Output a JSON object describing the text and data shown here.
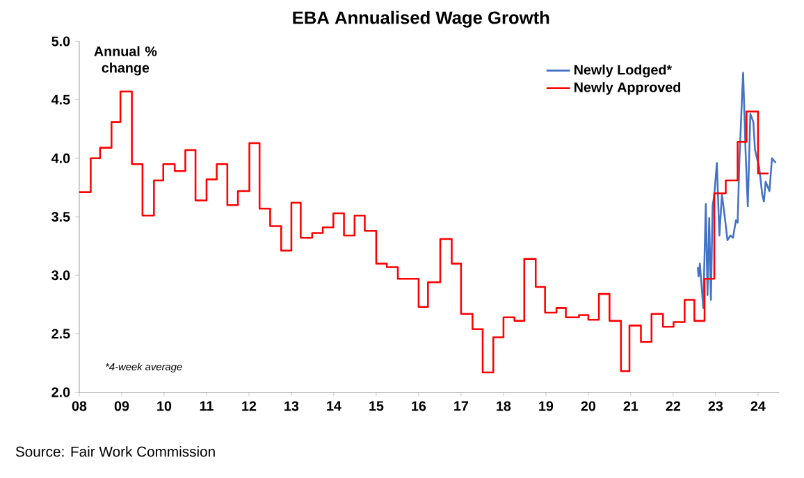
{
  "chart_data": {
    "type": "line",
    "title": "EBA Annualised Wage Growth",
    "ylabel": "Annual % change",
    "annotations": [
      "*4-week average",
      "Source: Fair Work Commission"
    ],
    "xlim": [
      2008,
      2024.5
    ],
    "ylim": [
      2.0,
      5.0
    ],
    "xticks": [
      {
        "value": 2008,
        "label": "08"
      },
      {
        "value": 2009,
        "label": "09"
      },
      {
        "value": 2010,
        "label": "10"
      },
      {
        "value": 2011,
        "label": "11"
      },
      {
        "value": 2012,
        "label": "12"
      },
      {
        "value": 2013,
        "label": "13"
      },
      {
        "value": 2014,
        "label": "14"
      },
      {
        "value": 2015,
        "label": "15"
      },
      {
        "value": 2016,
        "label": "16"
      },
      {
        "value": 2017,
        "label": "17"
      },
      {
        "value": 2018,
        "label": "18"
      },
      {
        "value": 2019,
        "label": "19"
      },
      {
        "value": 2020,
        "label": "20"
      },
      {
        "value": 2021,
        "label": "21"
      },
      {
        "value": 2022,
        "label": "22"
      },
      {
        "value": 2023,
        "label": "23"
      },
      {
        "value": 2024,
        "label": "24"
      }
    ],
    "yticks": [
      {
        "value": 2.0,
        "label": "2.0"
      },
      {
        "value": 2.5,
        "label": "2.5"
      },
      {
        "value": 3.0,
        "label": "3.0"
      },
      {
        "value": 3.5,
        "label": "3.5"
      },
      {
        "value": 4.0,
        "label": "4.0"
      },
      {
        "value": 4.5,
        "label": "4.5"
      },
      {
        "value": 5.0,
        "label": "5.0"
      }
    ],
    "grid": false,
    "legend": "top right",
    "series": [
      {
        "name": "Newly Lodged*",
        "type": "line",
        "color": "#4472c4",
        "x": [
          2022.58,
          2022.6,
          2022.63,
          2022.67,
          2022.71,
          2022.77,
          2022.81,
          2022.85,
          2022.89,
          2022.93,
          2022.97,
          2023.03,
          2023.09,
          2023.15,
          2023.22,
          2023.28,
          2023.35,
          2023.41,
          2023.48,
          2023.52,
          2023.56,
          2023.63,
          2023.65,
          2023.71,
          2023.76,
          2023.82,
          2023.89,
          2023.93,
          2024.03,
          2024.1,
          2024.14,
          2024.18,
          2024.27,
          2024.33,
          2024.42
        ],
        "values": [
          3.07,
          2.99,
          3.1,
          2.91,
          2.72,
          3.61,
          2.83,
          3.49,
          2.79,
          3.59,
          3.69,
          3.96,
          3.34,
          3.69,
          3.49,
          3.3,
          3.34,
          3.32,
          3.47,
          3.45,
          3.96,
          4.58,
          4.73,
          4.03,
          3.59,
          4.38,
          4.31,
          4.07,
          3.92,
          3.69,
          3.63,
          3.8,
          3.72,
          4.0,
          3.96
        ]
      },
      {
        "name": "Newly Approved",
        "type": "step",
        "color": "#ff0000",
        "x": [
          2008.0,
          2008.27,
          2008.49,
          2008.76,
          2008.97,
          2009.24,
          2009.49,
          2009.76,
          2009.98,
          2010.25,
          2010.5,
          2010.74,
          2011.0,
          2011.24,
          2011.49,
          2011.74,
          2012.01,
          2012.25,
          2012.5,
          2012.76,
          2013.0,
          2013.22,
          2013.49,
          2013.74,
          2013.99,
          2014.24,
          2014.49,
          2014.73,
          2015.0,
          2015.25,
          2015.51,
          2016.0,
          2016.22,
          2016.51,
          2016.78,
          2017.0,
          2017.27,
          2017.51,
          2017.76,
          2018.0,
          2018.26,
          2018.49,
          2018.76,
          2018.98,
          2019.25,
          2019.47,
          2019.78,
          2020.0,
          2020.25,
          2020.5,
          2020.77,
          2020.97,
          2021.24,
          2021.49,
          2021.76,
          2022.01,
          2022.27,
          2022.5,
          2022.74,
          2022.97,
          2023.24,
          2023.52,
          2023.73,
          2024.0,
          2024.25
        ],
        "values": [
          3.71,
          4.0,
          4.09,
          4.31,
          4.57,
          3.95,
          3.51,
          3.81,
          3.95,
          3.89,
          4.07,
          3.64,
          3.82,
          3.95,
          3.6,
          3.72,
          4.13,
          3.57,
          3.42,
          3.21,
          3.62,
          3.32,
          3.36,
          3.41,
          3.53,
          3.34,
          3.51,
          3.38,
          3.1,
          3.07,
          2.97,
          2.73,
          2.94,
          3.31,
          3.1,
          2.67,
          2.54,
          2.17,
          2.47,
          2.64,
          2.61,
          3.14,
          2.9,
          2.68,
          2.72,
          2.64,
          2.66,
          2.62,
          2.84,
          2.61,
          2.18,
          2.57,
          2.43,
          2.67,
          2.56,
          2.6,
          2.79,
          2.61,
          2.97,
          3.7,
          3.81,
          4.14,
          4.4,
          3.87,
          3.87
        ]
      }
    ]
  }
}
